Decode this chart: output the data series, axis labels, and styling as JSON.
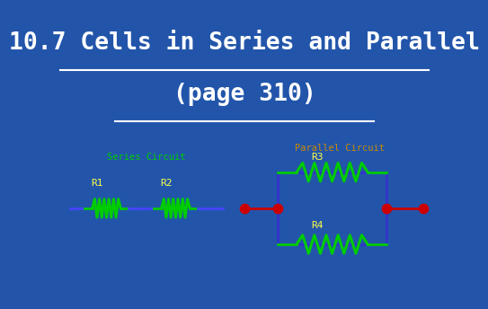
{
  "title_line1": "10.7 Cells in Series and Parallel",
  "title_line2": "(page 310)",
  "title_color": "#ffffff",
  "title_fontsize": 19,
  "bg_color": "#2255aa",
  "panel_color": "#000000",
  "panel_border_color": "#666666",
  "resistor_color": "#00cc00",
  "wire_color_series": "#4444ff",
  "wire_color_parallel": "#3333cc",
  "dot_color": "#cc0000",
  "label_color_series": "#00cc00",
  "label_color_parallel": "#cc8800",
  "label_color_r": "#ffff44",
  "series_label": "Series Circuit",
  "parallel_label": "Parallel Circuit",
  "r1_label": "R1",
  "r2_label": "R2",
  "r3_label": "R3",
  "r4_label": "R4"
}
